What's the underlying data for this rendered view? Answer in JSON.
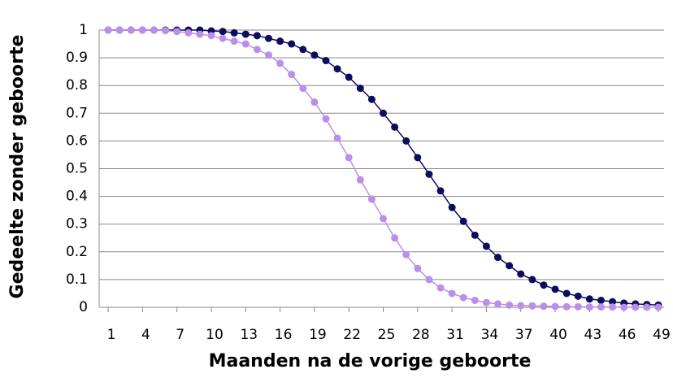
{
  "chart_data": {
    "type": "line",
    "xlabel": "Maanden na de vorige geboorte",
    "ylabel": "Gedeelte zonder geboorte",
    "x": [
      1,
      2,
      3,
      4,
      5,
      6,
      7,
      8,
      9,
      10,
      11,
      12,
      13,
      14,
      15,
      16,
      17,
      18,
      19,
      20,
      21,
      22,
      23,
      24,
      25,
      26,
      27,
      28,
      29,
      30,
      31,
      32,
      33,
      34,
      35,
      36,
      37,
      38,
      39,
      40,
      41,
      42,
      43,
      44,
      45,
      46,
      47,
      48,
      49
    ],
    "series": [
      {
        "color": "#0c0c5c",
        "values": [
          1,
          1,
          1,
          1,
          1,
          1,
          1,
          1,
          1,
          0.997,
          0.995,
          0.99,
          0.985,
          0.98,
          0.97,
          0.96,
          0.95,
          0.93,
          0.91,
          0.89,
          0.86,
          0.83,
          0.79,
          0.75,
          0.7,
          0.65,
          0.6,
          0.54,
          0.48,
          0.42,
          0.36,
          0.31,
          0.26,
          0.22,
          0.18,
          0.15,
          0.12,
          0.1,
          0.08,
          0.065,
          0.05,
          0.04,
          0.03,
          0.025,
          0.02,
          0.015,
          0.012,
          0.01,
          0.008
        ]
      },
      {
        "color": "#bb8fe8",
        "values": [
          1,
          1,
          1,
          1,
          1,
          0.998,
          0.995,
          0.99,
          0.985,
          0.98,
          0.97,
          0.96,
          0.95,
          0.93,
          0.91,
          0.88,
          0.84,
          0.79,
          0.74,
          0.68,
          0.61,
          0.54,
          0.46,
          0.39,
          0.32,
          0.25,
          0.19,
          0.14,
          0.1,
          0.07,
          0.05,
          0.035,
          0.025,
          0.017,
          0.012,
          0.008,
          0.006,
          0.005,
          0.004,
          0.003,
          0.002,
          0.002,
          0.001,
          0.001,
          0.001,
          0,
          0,
          0,
          0
        ]
      }
    ],
    "xlim": [
      0.5,
      49.5
    ],
    "xticks": [
      1,
      4,
      7,
      10,
      13,
      16,
      19,
      22,
      25,
      28,
      31,
      34,
      37,
      40,
      43,
      46,
      49
    ],
    "ylim": [
      0,
      1
    ],
    "yticks": [
      0,
      0.1,
      0.2,
      0.3,
      0.4,
      0.5,
      0.6,
      0.7,
      0.8,
      0.9,
      1
    ],
    "grid": true
  }
}
